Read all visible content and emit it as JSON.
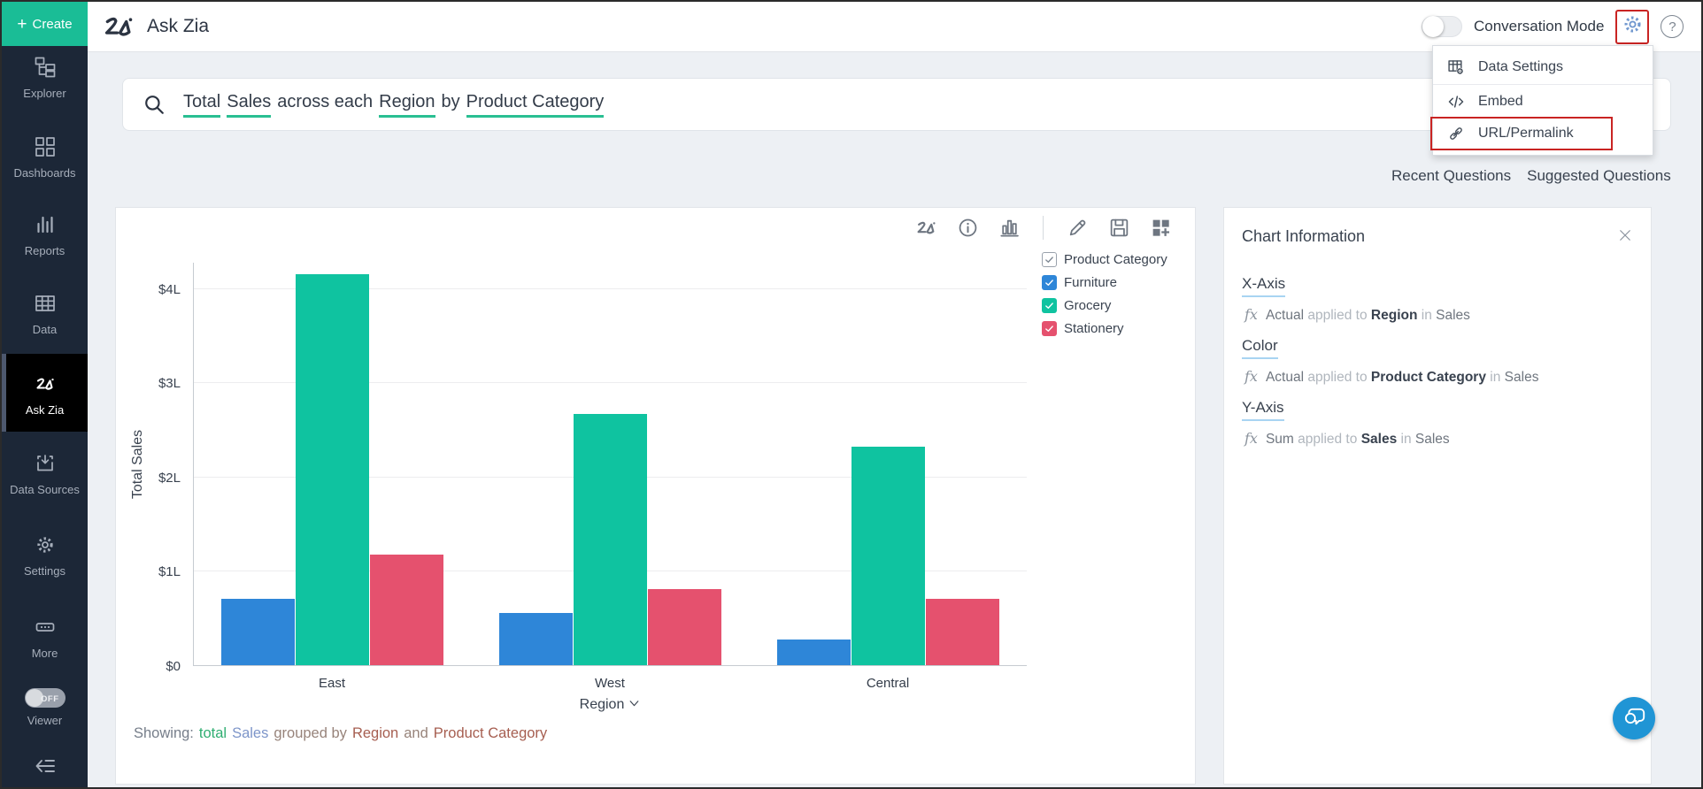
{
  "topbar": {
    "title": "Ask Zia",
    "conversation_mode_label": "Conversation Mode",
    "conversation_mode_on": false,
    "help_glyph": "?"
  },
  "sidebar": {
    "create_label": "Create",
    "create_color": "#1abd96",
    "items": [
      {
        "label": "Explorer",
        "icon": "explorer-icon",
        "active": false
      },
      {
        "label": "Dashboards",
        "icon": "dashboards-icon",
        "active": false
      },
      {
        "label": "Reports",
        "icon": "reports-icon",
        "active": false
      },
      {
        "label": "Data",
        "icon": "data-icon",
        "active": false
      },
      {
        "label": "Ask Zia",
        "icon": "zia-icon",
        "active": true
      },
      {
        "label": "Data Sources",
        "icon": "data-sources-icon",
        "active": false
      },
      {
        "label": "Settings",
        "icon": "gear-icon",
        "active": false
      },
      {
        "label": "More",
        "icon": "more-icon",
        "active": false
      }
    ],
    "viewer": {
      "label": "Viewer",
      "toggle_state": "OFF"
    }
  },
  "settings_menu": {
    "items": [
      {
        "label": "Data Settings",
        "icon": "data-settings-icon",
        "highlighted": false
      },
      {
        "label": "Embed",
        "icon": "embed-icon",
        "highlighted": false
      },
      {
        "label": "URL/Permalink",
        "icon": "link-icon",
        "highlighted": true
      }
    ],
    "highlight_color": "#c92423"
  },
  "search": {
    "query_segments": [
      {
        "text": "Total",
        "underlined": true
      },
      {
        "text": "Sales",
        "underlined": true
      },
      {
        "text": "across each",
        "underlined": false
      },
      {
        "text": "Region",
        "underlined": true
      },
      {
        "text": "by",
        "underlined": false
      },
      {
        "text": "Product Category",
        "underlined": true
      }
    ],
    "underline_color": "#2abf92"
  },
  "questions": {
    "recent": "Recent Questions",
    "suggested": "Suggested Questions"
  },
  "chart_card": {
    "toolbar": [
      {
        "icon": "zia-icon"
      },
      {
        "icon": "info-icon"
      },
      {
        "icon": "chart-type-icon"
      },
      {
        "divider": true
      },
      {
        "icon": "edit-icon"
      },
      {
        "icon": "save-icon"
      },
      {
        "icon": "add-to-dashboard-icon"
      }
    ]
  },
  "chart_data": {
    "type": "bar",
    "title": "",
    "categories": [
      "East",
      "West",
      "Central"
    ],
    "series": [
      {
        "name": "Furniture",
        "color": "#2e86d8",
        "values": [
          0.7,
          0.55,
          0.27
        ]
      },
      {
        "name": "Grocery",
        "color": "#0fc3a0",
        "values": [
          4.15,
          2.67,
          2.32
        ]
      },
      {
        "name": "Stationery",
        "color": "#e5516e",
        "values": [
          1.17,
          0.81,
          0.7
        ]
      }
    ],
    "xlabel": "Region",
    "ylabel": "Total Sales",
    "y_ticks": [
      "$0",
      "$1L",
      "$2L",
      "$3L",
      "$4L"
    ],
    "y_tick_values": [
      0,
      1,
      2,
      3,
      4
    ],
    "ylim": [
      0,
      4.28
    ],
    "unit": "lakh ($L)",
    "grid": true,
    "legend_title": "Product Category",
    "legend_position": "top-right",
    "legend_all_checked": true
  },
  "showing": {
    "segments": [
      {
        "text": "Showing:",
        "color": "#767e8a"
      },
      {
        "text": "total",
        "color": "#2fae71"
      },
      {
        "text": "Sales",
        "color": "#7d95c9"
      },
      {
        "text": "grouped by",
        "color": "#97837a"
      },
      {
        "text": "Region",
        "color": "#a65e50"
      },
      {
        "text": "and",
        "color": "#97837a"
      },
      {
        "text": "Product Category",
        "color": "#a65e50"
      }
    ]
  },
  "chart_info": {
    "title": "Chart Information",
    "fx_label": "fx",
    "sections": [
      {
        "label": "X-Axis",
        "function": "Actual",
        "applied_to": "applied to",
        "field": "Region",
        "in_word": "in",
        "table": "Sales"
      },
      {
        "label": "Color",
        "function": "Actual",
        "applied_to": "applied to",
        "field": "Product Category",
        "in_word": "in",
        "table": "Sales"
      },
      {
        "label": "Y-Axis",
        "function": "Sum",
        "applied_to": "applied to",
        "field": "Sales",
        "in_word": "in",
        "table": "Sales"
      }
    ]
  },
  "chat": {
    "icon": "chat-bubble-icon",
    "color": "#2095d5"
  }
}
